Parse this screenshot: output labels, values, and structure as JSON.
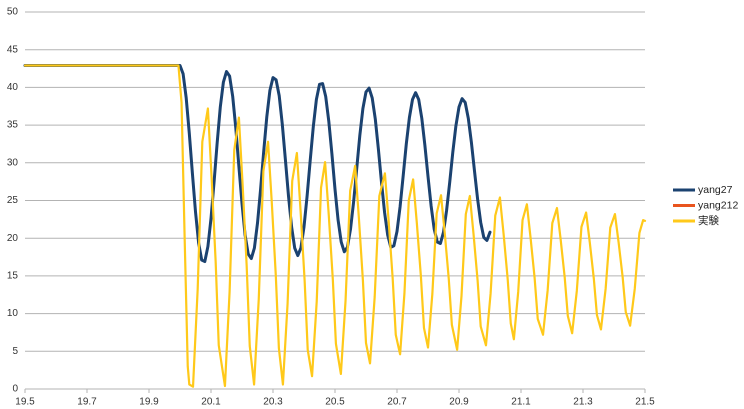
{
  "chart_data": {
    "type": "line",
    "xlim": [
      19.5,
      21.5
    ],
    "xticks": [
      19.5,
      19.7,
      19.9,
      20.1,
      20.3,
      20.5,
      20.7,
      20.9,
      21.1,
      21.3,
      21.5
    ],
    "ylim": [
      0,
      50
    ],
    "yticks": [
      0,
      5,
      10,
      15,
      20,
      25,
      30,
      35,
      40,
      45,
      50
    ],
    "grid": true,
    "legend": "right",
    "series": [
      {
        "name": "yang212",
        "color": "#e9541e",
        "x": [
          19.5,
          20,
          20.01,
          20.02,
          20.03,
          20.04,
          20.05,
          20.06,
          20.07,
          20.08,
          20.09,
          20.1,
          20.11,
          20.12,
          20.13,
          20.14,
          20.15,
          20.16,
          20.17,
          20.18,
          20.19,
          20.2,
          20.21,
          20.22,
          20.23,
          20.24,
          20.25,
          20.26,
          20.27,
          20.28,
          20.29,
          20.3,
          20.31,
          20.32,
          20.33,
          20.34,
          20.35,
          20.36,
          20.37,
          20.38,
          20.39,
          20.4,
          20.41,
          20.42,
          20.43,
          20.44,
          20.45,
          20.46,
          20.47,
          20.48,
          20.49,
          20.5,
          20.51,
          20.52,
          20.53,
          20.54,
          20.55,
          20.56,
          20.57,
          20.58,
          20.59,
          20.6,
          20.61,
          20.62,
          20.63,
          20.64,
          20.65,
          20.66,
          20.67,
          20.68,
          20.69,
          20.7,
          20.71,
          20.72,
          20.73,
          20.74,
          20.75,
          20.76,
          20.77,
          20.78,
          20.79,
          20.8,
          20.81,
          20.82,
          20.83,
          20.84,
          20.85,
          20.86,
          20.87,
          20.88,
          20.89,
          20.9,
          20.91,
          20.92,
          20.93,
          20.94,
          20.95,
          20.96,
          20.97,
          20.98,
          20.99,
          21
        ],
        "values": [
          42.9,
          42.9,
          41.8,
          38.6,
          33.9,
          28.6,
          23.5,
          19.4,
          17.1,
          16.9,
          18.9,
          22.6,
          27.5,
          32.7,
          37.4,
          40.7,
          42.1,
          41.5,
          38.8,
          34.6,
          29.5,
          24.6,
          20.4,
          17.9,
          17.3,
          18.7,
          22.0,
          26.5,
          31.5,
          36.1,
          39.6,
          41.3,
          41.0,
          38.9,
          35.1,
          30.4,
          25.6,
          21.5,
          18.7,
          17.7,
          18.7,
          21.5,
          25.6,
          30.3,
          34.8,
          38.4,
          40.4,
          40.5,
          38.8,
          35.5,
          31.2,
          26.5,
          22.4,
          19.5,
          18.2,
          18.8,
          21.2,
          24.8,
          29.2,
          33.6,
          37.2,
          39.4,
          39.9,
          38.6,
          35.8,
          31.8,
          27.4,
          23.4,
          20.4,
          18.8,
          19.0,
          20.9,
          24.2,
          28.3,
          32.5,
          36.0,
          38.4,
          39.3,
          38.4,
          35.9,
          32.3,
          28.2,
          24.3,
          21.2,
          19.5,
          19.3,
          20.8,
          23.7,
          27.4,
          31.4,
          34.9,
          37.4,
          38.5,
          38.0,
          35.9,
          32.7,
          28.9,
          25.2,
          22.1,
          20.1,
          19.7,
          20.8
        ]
      },
      {
        "name": "yang27",
        "color": "#1b4270",
        "x": [
          19.5,
          20,
          20.01,
          20.02,
          20.03,
          20.04,
          20.05,
          20.06,
          20.07,
          20.08,
          20.09,
          20.1,
          20.11,
          20.12,
          20.13,
          20.14,
          20.15,
          20.16,
          20.17,
          20.18,
          20.19,
          20.2,
          20.21,
          20.22,
          20.23,
          20.24,
          20.25,
          20.26,
          20.27,
          20.28,
          20.29,
          20.3,
          20.31,
          20.32,
          20.33,
          20.34,
          20.35,
          20.36,
          20.37,
          20.38,
          20.39,
          20.4,
          20.41,
          20.42,
          20.43,
          20.44,
          20.45,
          20.46,
          20.47,
          20.48,
          20.49,
          20.5,
          20.51,
          20.52,
          20.53,
          20.54,
          20.55,
          20.56,
          20.57,
          20.58,
          20.59,
          20.6,
          20.61,
          20.62,
          20.63,
          20.64,
          20.65,
          20.66,
          20.67,
          20.68,
          20.69,
          20.7,
          20.71,
          20.72,
          20.73,
          20.74,
          20.75,
          20.76,
          20.77,
          20.78,
          20.79,
          20.8,
          20.81,
          20.82,
          20.83,
          20.84,
          20.85,
          20.86,
          20.87,
          20.88,
          20.89,
          20.9,
          20.91,
          20.92,
          20.93,
          20.94,
          20.95,
          20.96,
          20.97,
          20.98,
          20.99,
          21
        ],
        "values": [
          42.9,
          42.9,
          41.8,
          38.6,
          33.9,
          28.6,
          23.5,
          19.4,
          17.1,
          16.9,
          18.9,
          22.6,
          27.5,
          32.7,
          37.4,
          40.7,
          42.1,
          41.5,
          38.8,
          34.6,
          29.5,
          24.6,
          20.4,
          17.9,
          17.3,
          18.7,
          22.0,
          26.5,
          31.5,
          36.1,
          39.6,
          41.3,
          41.0,
          38.9,
          35.1,
          30.4,
          25.6,
          21.5,
          18.7,
          17.7,
          18.7,
          21.5,
          25.6,
          30.3,
          34.8,
          38.4,
          40.4,
          40.5,
          38.8,
          35.5,
          31.2,
          26.5,
          22.4,
          19.5,
          18.2,
          18.8,
          21.2,
          24.8,
          29.2,
          33.6,
          37.2,
          39.4,
          39.9,
          38.6,
          35.8,
          31.8,
          27.4,
          23.4,
          20.4,
          18.8,
          19.0,
          20.9,
          24.2,
          28.3,
          32.5,
          36.0,
          38.4,
          39.3,
          38.4,
          35.9,
          32.3,
          28.2,
          24.3,
          21.2,
          19.5,
          19.3,
          20.8,
          23.7,
          27.4,
          31.4,
          34.9,
          37.4,
          38.5,
          38.0,
          35.9,
          32.7,
          28.9,
          25.2,
          22.1,
          20.1,
          19.7,
          20.8
        ]
      },
      {
        "name": "実験",
        "color": "#ffc91a",
        "x": [
          19.5,
          19.995,
          20.005,
          20.015,
          20.025,
          20.03,
          20.042,
          20.057,
          20.072,
          20.09,
          20.102,
          20.115,
          20.125,
          20.145,
          20.16,
          20.175,
          20.19,
          20.202,
          20.215,
          20.225,
          20.239,
          20.254,
          20.269,
          20.284,
          20.296,
          20.309,
          20.319,
          20.332,
          20.347,
          20.362,
          20.377,
          20.389,
          20.402,
          20.412,
          20.426,
          20.441,
          20.455,
          20.468,
          20.48,
          20.493,
          20.503,
          20.519,
          20.534,
          20.549,
          20.565,
          20.577,
          20.59,
          20.6,
          20.613,
          20.628,
          20.643,
          20.661,
          20.673,
          20.686,
          20.696,
          20.71,
          20.724,
          20.738,
          20.752,
          20.764,
          20.777,
          20.787,
          20.8,
          20.814,
          20.828,
          20.842,
          20.854,
          20.867,
          20.877,
          20.894,
          20.908,
          20.922,
          20.935,
          20.947,
          20.96,
          20.97,
          20.987,
          21.002,
          21.017,
          21.032,
          21.044,
          21.057,
          21.067,
          21.077,
          21.091,
          21.105,
          21.119,
          21.131,
          21.144,
          21.154,
          21.171,
          21.186,
          21.201,
          21.216,
          21.228,
          21.241,
          21.251,
          21.265,
          21.28,
          21.295,
          21.31,
          21.322,
          21.335,
          21.345,
          21.358,
          21.373,
          21.388,
          21.403,
          21.415,
          21.428,
          21.438,
          21.452,
          21.467,
          21.482,
          21.494,
          21.5
        ],
        "values": [
          42.9,
          42.9,
          38,
          20,
          3,
          0.6,
          0.3,
          13.2,
          32.8,
          37.2,
          28.0,
          16.9,
          5.8,
          0.4,
          12.9,
          31.7,
          36.0,
          27.1,
          16.4,
          5.7,
          0.6,
          11.9,
          28.9,
          32.8,
          24.8,
          15.1,
          5.4,
          0.6,
          11.3,
          27.6,
          31.3,
          23.6,
          14.4,
          5.2,
          1.7,
          11.6,
          26.7,
          30.1,
          23.0,
          14.5,
          6.0,
          2.0,
          11.7,
          26.3,
          29.6,
          22.7,
          14.4,
          6.1,
          3.4,
          12.2,
          25.6,
          28.6,
          22.3,
          14.7,
          7.2,
          4.6,
          12.7,
          25.0,
          27.8,
          22.0,
          15.0,
          8.1,
          5.5,
          12.6,
          23.3,
          25.7,
          20.7,
          14.6,
          8.5,
          5.2,
          12.3,
          23.2,
          25.6,
          20.5,
          14.4,
          8.3,
          5.8,
          12.7,
          23.0,
          25.4,
          20.5,
          14.6,
          8.7,
          6.6,
          12.9,
          22.4,
          24.5,
          20.0,
          14.7,
          9.3,
          7.2,
          13.1,
          22.0,
          24.0,
          19.8,
          14.8,
          9.7,
          7.4,
          13.0,
          21.5,
          23.4,
          19.4,
          14.6,
          9.8,
          7.9,
          13.3,
          21.4,
          23.2,
          19.4,
          14.8,
          10.2,
          8.4,
          13.3,
          20.7,
          22.4,
          22.3
        ]
      }
    ]
  }
}
